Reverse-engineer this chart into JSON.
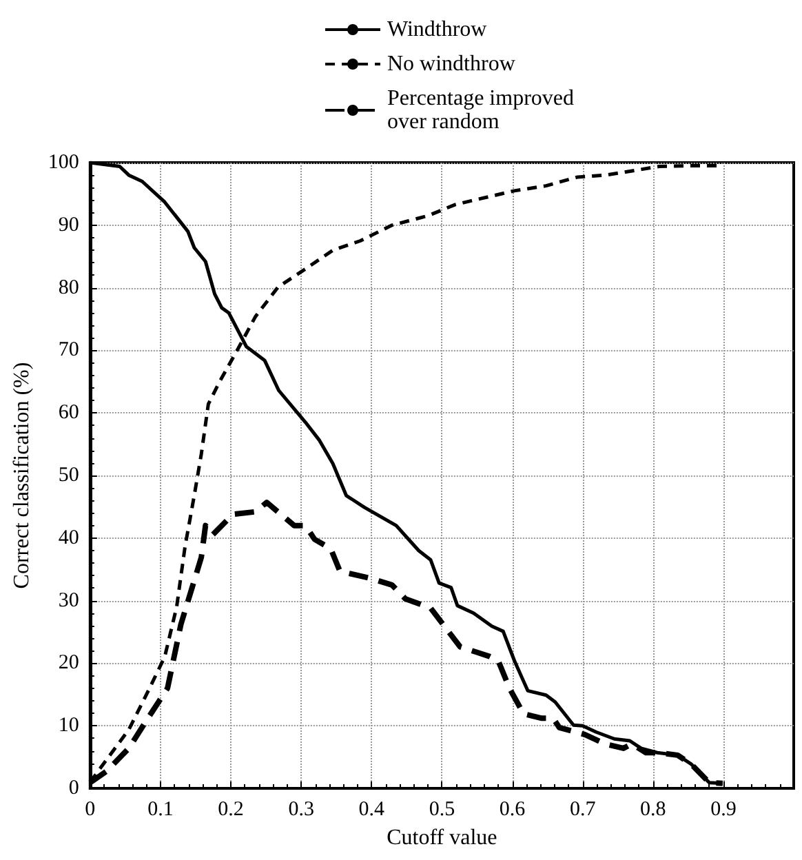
{
  "chart_data": {
    "type": "line",
    "xlabel": "Cutoff value",
    "ylabel": "Correct classification (%)",
    "xlim": [
      0,
      1
    ],
    "xticks": [
      0,
      0.1,
      0.2,
      0.3,
      0.4,
      0.5,
      0.6,
      0.7,
      0.8,
      0.9
    ],
    "ylim": [
      0,
      100
    ],
    "yticks": [
      0,
      10,
      20,
      30,
      40,
      50,
      60,
      70,
      80,
      90,
      100
    ],
    "grid": true,
    "legend": "top",
    "marker": "none",
    "series": [
      {
        "name": "Windthrow",
        "color": "#000000",
        "line_style": "solid",
        "x": [
          0,
          0.042,
          0.055,
          0.074,
          0.106,
          0.139,
          0.148,
          0.164,
          0.177,
          0.187,
          0.197,
          0.222,
          0.248,
          0.268,
          0.306,
          0.326,
          0.345,
          0.364,
          0.39,
          0.435,
          0.467,
          0.484,
          0.496,
          0.513,
          0.522,
          0.545,
          0.571,
          0.587,
          0.603,
          0.622,
          0.648,
          0.661,
          0.687,
          0.7,
          0.719,
          0.745,
          0.767,
          0.783,
          0.806,
          0.835,
          0.854,
          0.88,
          0.899
        ],
        "values": [
          100,
          99.4,
          98,
          97,
          93.7,
          89,
          86.4,
          84.2,
          79,
          76.8,
          76,
          70.6,
          68.4,
          63.6,
          58.5,
          55.6,
          51.9,
          46.8,
          44.9,
          42,
          38,
          36.5,
          32.8,
          32.1,
          29.2,
          28,
          25.9,
          25.1,
          20.4,
          15.6,
          14.9,
          13.8,
          10.1,
          10,
          9,
          7.9,
          7.6,
          6.4,
          5.7,
          5.3,
          3.9,
          0.9,
          0.8
        ]
      },
      {
        "name": "No windthrow",
        "color": "#000000",
        "line_style": "dashed",
        "x": [
          0,
          0.055,
          0.081,
          0.106,
          0.123,
          0.135,
          0.148,
          0.158,
          0.168,
          0.184,
          0.21,
          0.235,
          0.267,
          0.306,
          0.345,
          0.384,
          0.429,
          0.48,
          0.519,
          0.603,
          0.648,
          0.693,
          0.732,
          0.777,
          0.809,
          0.85,
          0.9
        ],
        "values": [
          1,
          9.4,
          15.2,
          21,
          29,
          38.7,
          46.8,
          53.4,
          61.4,
          65,
          70.2,
          75.4,
          80.1,
          83,
          86,
          87.5,
          90,
          91.5,
          93.3,
          95.5,
          96.3,
          97.7,
          98,
          98.8,
          99.4,
          99.5,
          99.5
        ]
      },
      {
        "name": "Percentage improved over random",
        "color": "#000000",
        "line_style": "dashed",
        "x": [
          0,
          0.023,
          0.055,
          0.081,
          0.11,
          0.129,
          0.145,
          0.158,
          0.164,
          0.174,
          0.203,
          0.235,
          0.251,
          0.29,
          0.306,
          0.319,
          0.342,
          0.355,
          0.397,
          0.429,
          0.448,
          0.484,
          0.509,
          0.526,
          0.548,
          0.567,
          0.58,
          0.596,
          0.616,
          0.642,
          0.658,
          0.667,
          0.703,
          0.732,
          0.758,
          0.77,
          0.79,
          0.806,
          0.835,
          0.854,
          0.88,
          0.899
        ],
        "values": [
          0.9,
          2.7,
          6.4,
          11,
          16,
          26.2,
          32.1,
          36.9,
          42,
          40.5,
          43.8,
          44.2,
          45.7,
          42,
          42,
          39.8,
          38.3,
          34.7,
          33.6,
          32.5,
          30.3,
          28.8,
          25.1,
          22.6,
          21.8,
          21.1,
          20.4,
          16,
          11.9,
          11.2,
          11.2,
          9.7,
          8.6,
          7.1,
          6.4,
          7.1,
          5.7,
          5.7,
          5.3,
          3.9,
          0.9,
          0.8
        ]
      }
    ]
  }
}
